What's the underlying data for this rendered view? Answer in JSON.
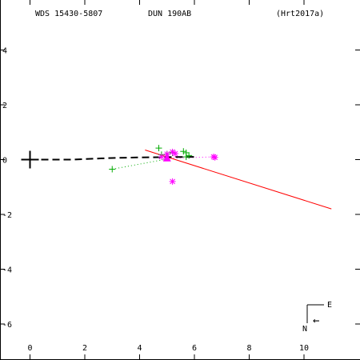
{
  "header": {
    "wds": "WDS 15430-5807",
    "disc": "DUN 190AB",
    "ref": "(Hrt2017a)"
  },
  "compass": {
    "east": "E",
    "north": "N",
    "arrow": "←"
  },
  "chart_data": {
    "type": "scatter",
    "title": "",
    "xlabel": "",
    "ylabel": "",
    "xlim": [
      -0.8,
      11.3
    ],
    "ylim": [
      -7.3,
      5.8
    ],
    "xticks": [
      0,
      2,
      4,
      6,
      8,
      10
    ],
    "yticks": [
      4,
      2,
      0,
      -2,
      -4,
      -6
    ],
    "xtick_labels": [
      "0",
      "2",
      "4",
      "6",
      "8",
      "10"
    ],
    "ytick_labels": [
      "4",
      "2",
      "0",
      "-2",
      "-4",
      "-6"
    ],
    "grid": false,
    "primary": {
      "x": 0,
      "y": 0,
      "marker": "cross"
    },
    "orbit_track": {
      "style": "dashed",
      "color": "#000000",
      "points": [
        [
          0,
          0
        ],
        [
          1.5,
          0.0
        ],
        [
          3.0,
          0.06
        ],
        [
          4.0,
          0.08
        ],
        [
          5.0,
          0.09
        ],
        [
          6.0,
          0.1
        ]
      ]
    },
    "fit_line": {
      "color": "#ff0000",
      "points": [
        [
          4.2,
          0.35
        ],
        [
          11.0,
          -1.8
        ]
      ]
    },
    "series": [
      {
        "marker": "plus",
        "color": "#00aa00",
        "points": [
          [
            3.0,
            -0.35
          ],
          [
            4.7,
            0.42
          ],
          [
            5.2,
            0.25
          ],
          [
            5.6,
            0.3
          ],
          [
            5.7,
            0.25
          ],
          [
            5.7,
            0.1
          ],
          [
            5.8,
            0.15
          ],
          [
            5.0,
            0.2
          ],
          [
            4.8,
            0.18
          ]
        ]
      },
      {
        "marker": "asterisk",
        "color": "#ff00ff",
        "points": [
          [
            4.8,
            0.1
          ],
          [
            5.0,
            0.2
          ],
          [
            5.2,
            0.28
          ],
          [
            5.3,
            0.22
          ],
          [
            5.2,
            -0.8
          ],
          [
            6.7,
            0.1
          ],
          [
            6.75,
            0.08
          ]
        ]
      },
      {
        "marker": "triangle",
        "color": "#ff00ff",
        "points": [
          [
            5.0,
            0.05
          ]
        ]
      }
    ],
    "dotted_links": [
      {
        "color": "#00aa00",
        "from": [
          3.0,
          -0.35
        ],
        "to": [
          5.0,
          0.02
        ]
      },
      {
        "color": "#ff00ff",
        "from": [
          5.0,
          0.05
        ],
        "to": [
          6.7,
          0.1
        ]
      }
    ]
  }
}
